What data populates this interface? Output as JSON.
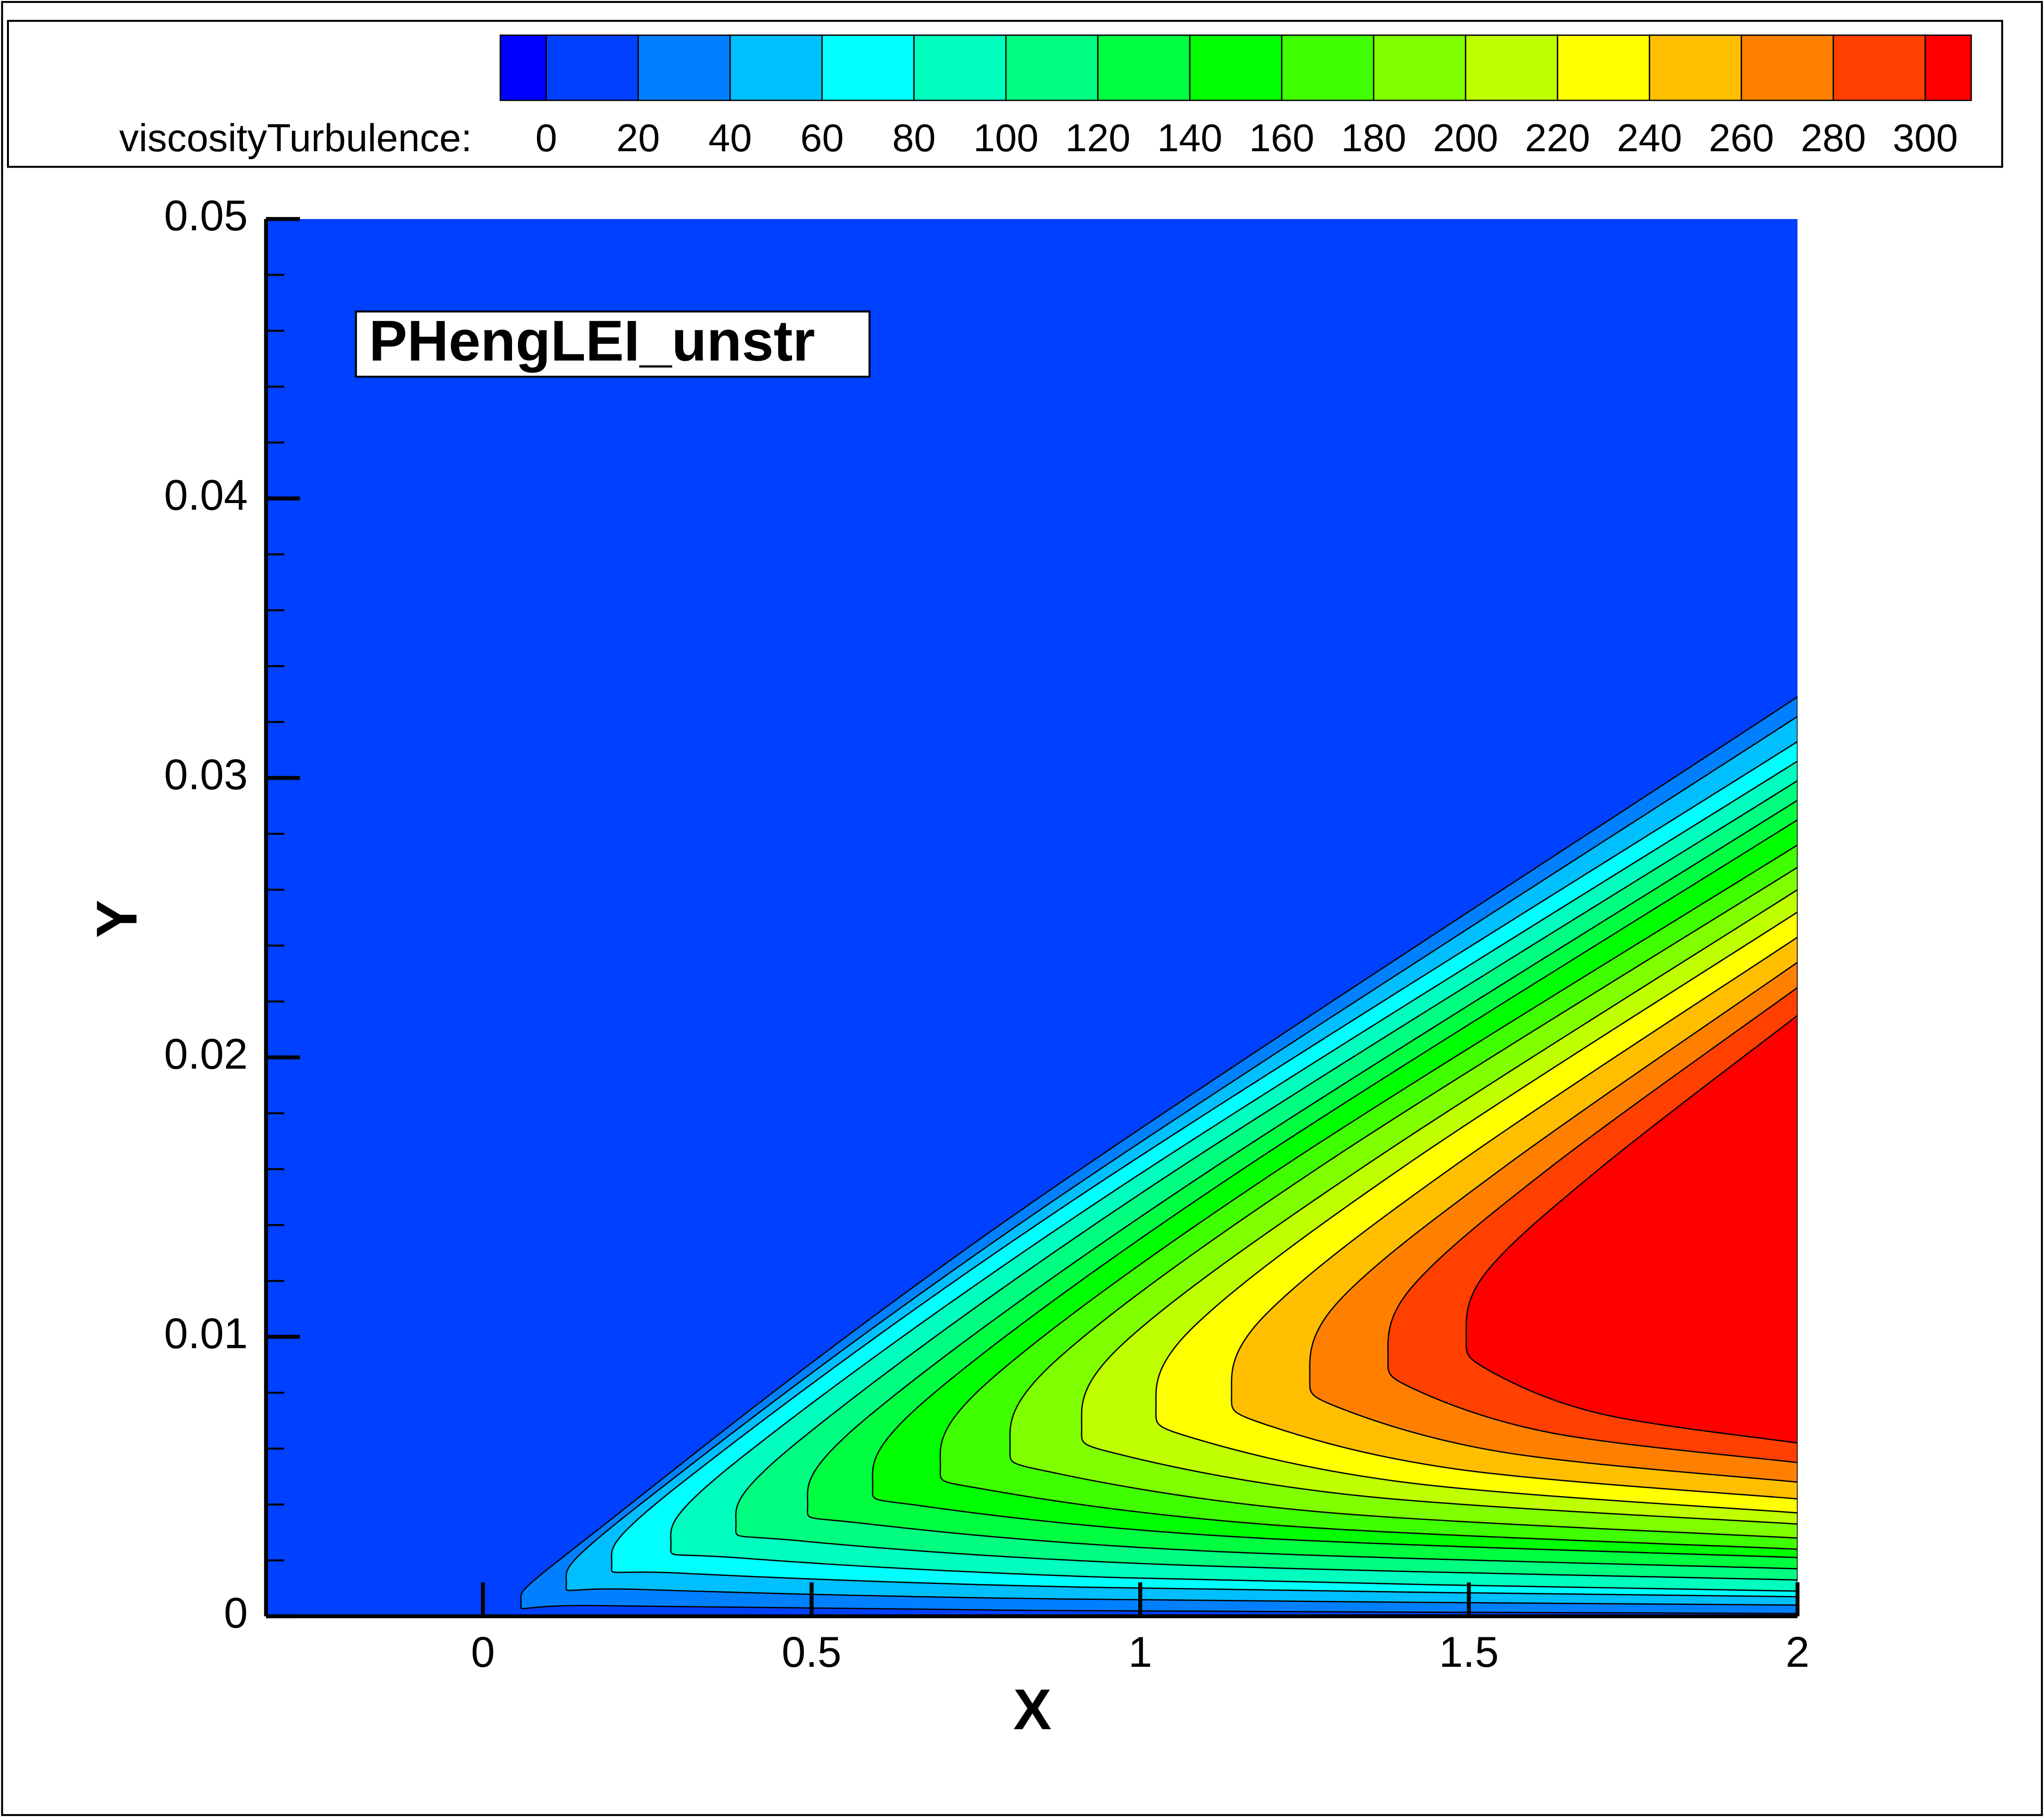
{
  "chart_data": {
    "type": "contour",
    "annotation": "PHengLEI_unstr",
    "x_label": "X",
    "y_label": "Y",
    "xlim": [
      -0.33,
      2
    ],
    "ylim": [
      0,
      0.05
    ],
    "xticks": [
      0,
      0.5,
      1,
      1.5,
      2
    ],
    "yticks": [
      0,
      0.01,
      0.02,
      0.03,
      0.04,
      0.05
    ],
    "yminorticks": [
      0.002,
      0.004,
      0.006,
      0.008,
      0.012,
      0.014,
      0.016,
      0.018,
      0.022,
      0.024,
      0.026,
      0.028,
      0.032,
      0.034,
      0.036,
      0.038,
      0.042,
      0.044,
      0.046,
      0.048
    ],
    "colorbar": {
      "label": "viscosityTurbulence:",
      "ticks": [
        0,
        20,
        40,
        60,
        80,
        100,
        120,
        140,
        160,
        180,
        200,
        220,
        240,
        260,
        280,
        300
      ],
      "colors": [
        "#0000ff",
        "#0040ff",
        "#0080ff",
        "#00bfff",
        "#00ffff",
        "#00ffbf",
        "#00ff80",
        "#00ff40",
        "#00ff00",
        "#40ff00",
        "#80ff00",
        "#bfff00",
        "#ffff00",
        "#ffbf00",
        "#ff8000",
        "#ff4000",
        "#ff0000"
      ]
    },
    "contours": [
      {
        "level": 20,
        "x": [
          2,
          0.835,
          0.175,
          0.058,
          0.175,
          0.835,
          2
        ],
        "y": [
          0.0001,
          0.00021,
          0.00038,
          0.0005,
          0.0031,
          0.0148,
          0.0329
        ]
      },
      {
        "level": 40,
        "x": [
          2,
          0.876,
          0.239,
          0.127,
          0.239,
          0.876,
          2
        ],
        "y": [
          0.0004,
          0.00062,
          0.00096,
          0.0012,
          0.004,
          0.015,
          0.0322
        ]
      },
      {
        "level": 60,
        "x": [
          2,
          0.918,
          0.304,
          0.196,
          0.304,
          0.918,
          2
        ],
        "y": [
          0.0007,
          0.00104,
          0.00154,
          0.0019,
          0.0048,
          0.0152,
          0.0313
        ]
      },
      {
        "level": 80,
        "x": [
          2,
          0.972,
          0.389,
          0.286,
          0.389,
          0.972,
          2
        ],
        "y": [
          0.0009,
          0.00138,
          0.00209,
          0.0026,
          0.0056,
          0.0154,
          0.0306
        ]
      },
      {
        "level": 100,
        "x": [
          2,
          1.031,
          0.482,
          0.385,
          0.482,
          1.031,
          2
        ],
        "y": [
          0.0013,
          0.00186,
          0.0027,
          0.0033,
          0.0063,
          0.0156,
          0.0299
        ]
      },
      {
        "level": 120,
        "x": [
          2,
          1.096,
          0.584,
          0.494,
          0.584,
          1.096,
          2
        ],
        "y": [
          0.0017,
          0.00234,
          0.00331,
          0.004,
          0.0071,
          0.0158,
          0.0292
        ]
      },
      {
        "level": 140,
        "x": [
          2,
          1.156,
          0.677,
          0.593,
          0.677,
          1.156,
          2
        ],
        "y": [
          0.0021,
          0.00283,
          0.00392,
          0.0047,
          0.0078,
          0.016,
          0.0285
        ]
      },
      {
        "level": 160,
        "x": [
          2,
          1.218,
          0.774,
          0.696,
          0.774,
          1.218,
          2
        ],
        "y": [
          0.0024,
          0.00324,
          0.0045,
          0.0054,
          0.0085,
          0.0161,
          0.0276
        ]
      },
      {
        "level": 180,
        "x": [
          2,
          1.281,
          0.874,
          0.802,
          0.874,
          1.281,
          2
        ],
        "y": [
          0.0028,
          0.00372,
          0.00511,
          0.0061,
          0.0092,
          0.0162,
          0.0268
        ]
      },
      {
        "level": 200,
        "x": [
          2,
          1.347,
          0.976,
          0.911,
          0.976,
          1.347,
          2
        ],
        "y": [
          0.0033,
          0.00428,
          0.00575,
          0.0068,
          0.0098,
          0.0162,
          0.026
        ]
      },
      {
        "level": 220,
        "x": [
          2,
          1.414,
          1.083,
          1.024,
          1.083,
          1.414,
          2
        ],
        "y": [
          0.0037,
          0.00476,
          0.00636,
          0.0075,
          0.0104,
          0.0163,
          0.0252
        ]
      },
      {
        "level": 240,
        "x": [
          2,
          1.483,
          1.191,
          1.139,
          1.191,
          1.483,
          2
        ],
        "y": [
          0.0042,
          0.00526,
          0.00686,
          0.008,
          0.0108,
          0.0162,
          0.0243
        ]
      },
      {
        "level": 260,
        "x": [
          2,
          1.555,
          1.303,
          1.258,
          1.303,
          1.555,
          2
        ],
        "y": [
          0.0048,
          0.00586,
          0.00746,
          0.0086,
          0.0113,
          0.0161,
          0.0234
        ]
      },
      {
        "level": 280,
        "x": [
          2,
          1.626,
          1.414,
          1.377,
          1.414,
          1.626,
          2
        ],
        "y": [
          0.0055,
          0.00656,
          0.00816,
          0.0093,
          0.0118,
          0.0161,
          0.0225
        ]
      },
      {
        "level": 300,
        "x": [
          2,
          1.698,
          1.526,
          1.496,
          1.526,
          1.698,
          2
        ],
        "y": [
          0.0062,
          0.00726,
          0.00886,
          0.01,
          0.0123,
          0.016,
          0.0215
        ]
      }
    ]
  }
}
